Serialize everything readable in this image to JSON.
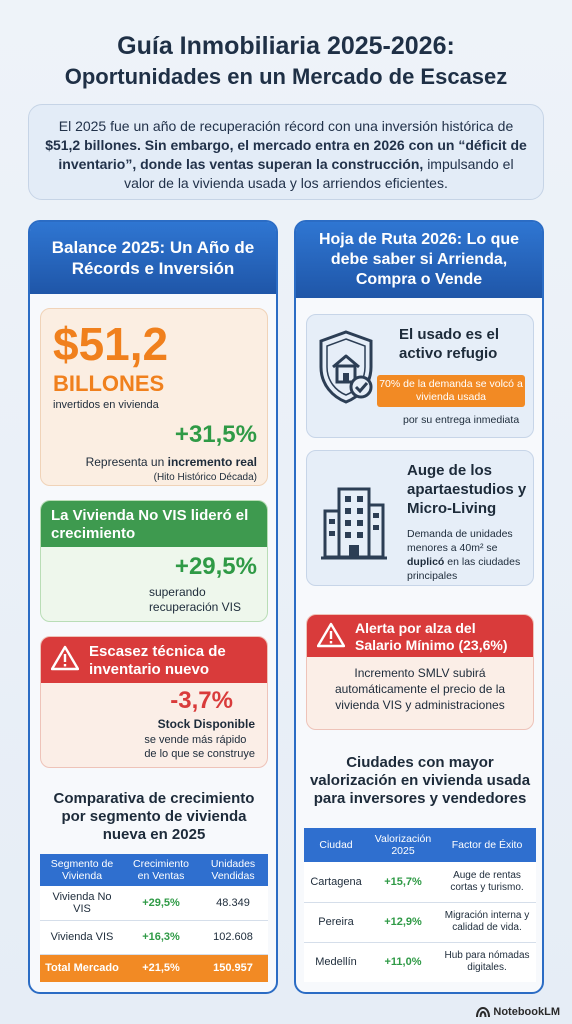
{
  "title": {
    "line1": "Guía Inmobiliaria 2025-2026:",
    "line2": "Oportunidades en un Mercado de Escasez"
  },
  "intro": {
    "p1": "El 2025 fue un año de recuperación récord con una inversión histórica de ",
    "p1_bold": "$51,2 billones",
    "p2": ". Sin embargo, el mercado entra en 2026 con un “déficit de inventario”, donde las ventas superan la construcción,",
    "p3": "impulsando el valor de la vivienda usada y los arriendos eficientes."
  },
  "left": {
    "header": "Balance 2025: Un Año de Récords e Inversión",
    "amount": "$51,2",
    "amount_unit": "BILLONES",
    "amount_note": "invertidos en vivienda",
    "growth": "+31,5%",
    "growth_text_pre": "Representa un ",
    "growth_text_bold": "incremento real",
    "growth_note": "(Hito Histórico Década)",
    "novis_header": "La Vivienda No VIS lideró el crecimiento",
    "novis_pct": "+29,5%",
    "novis_line1": "superando",
    "novis_line2": "recuperación VIS",
    "scarcity_header": "Escasez técnica de inventario nuevo",
    "scarcity_pct": "-3,7%",
    "scarcity_label": "Stock Disponible",
    "scarcity_line1": "se vende más rápido",
    "scarcity_line2": "de lo que se construye",
    "compare_title": "Comparativa de crecimiento por segmento de vivienda nueva en 2025",
    "table": {
      "headers": [
        "Segmento de Vivienda",
        "Crecimiento en Ventas",
        "Unidades Vendidas"
      ],
      "rows": [
        [
          "Vivienda No VIS",
          "+29,5%",
          "48.349"
        ],
        [
          "Vivienda VIS",
          "+16,3%",
          "102.608"
        ]
      ],
      "total": [
        "Total Mercado",
        "+21,5%",
        "150.957"
      ]
    }
  },
  "right": {
    "header": "Hoja de Ruta 2026: Lo que debe saber si Arrienda, Compra o Vende",
    "used_title": "El usado es el activo refugio",
    "used_badge": "70% de la demanda se volcó a vivienda usada",
    "used_sub": "por su entrega inmediata",
    "micro_title": "Auge de los apartaestudios y Micro-Living",
    "micro_sub_pre": "Demanda de unidades menores a 40m² se ",
    "micro_sub_bold": "duplicó",
    "micro_sub_post": " en las ciudades principales",
    "alert_header": "Alerta por alza del Salario Mínimo (23,6%)",
    "alert_body": "Incremento SMLV subirá automáticamente el precio de la vivienda VIS y administraciones",
    "cities_title": "Ciudades con mayor valorización en vivienda usada para inversores y vendedores",
    "table": {
      "headers": [
        "Ciudad",
        "Valorización 2025",
        "Factor de Éxito"
      ],
      "rows": [
        [
          "Cartagena",
          "+15,7%",
          "Auge de rentas cortas y turismo."
        ],
        [
          "Pereira",
          "+12,9%",
          "Migración interna y calidad de vida."
        ],
        [
          "Medellín",
          "+11,0%",
          "Hub para nómadas digitales."
        ]
      ]
    }
  },
  "footer": {
    "brand": "NotebookLM"
  },
  "colors": {
    "blue": "#2b6cc4",
    "orange": "#f0801d",
    "green": "#2f9a46",
    "red": "#d93b3b"
  },
  "icons": [
    "shield-house-icon",
    "building-icon",
    "warning-icon",
    "notebooklm-logo-icon"
  ]
}
